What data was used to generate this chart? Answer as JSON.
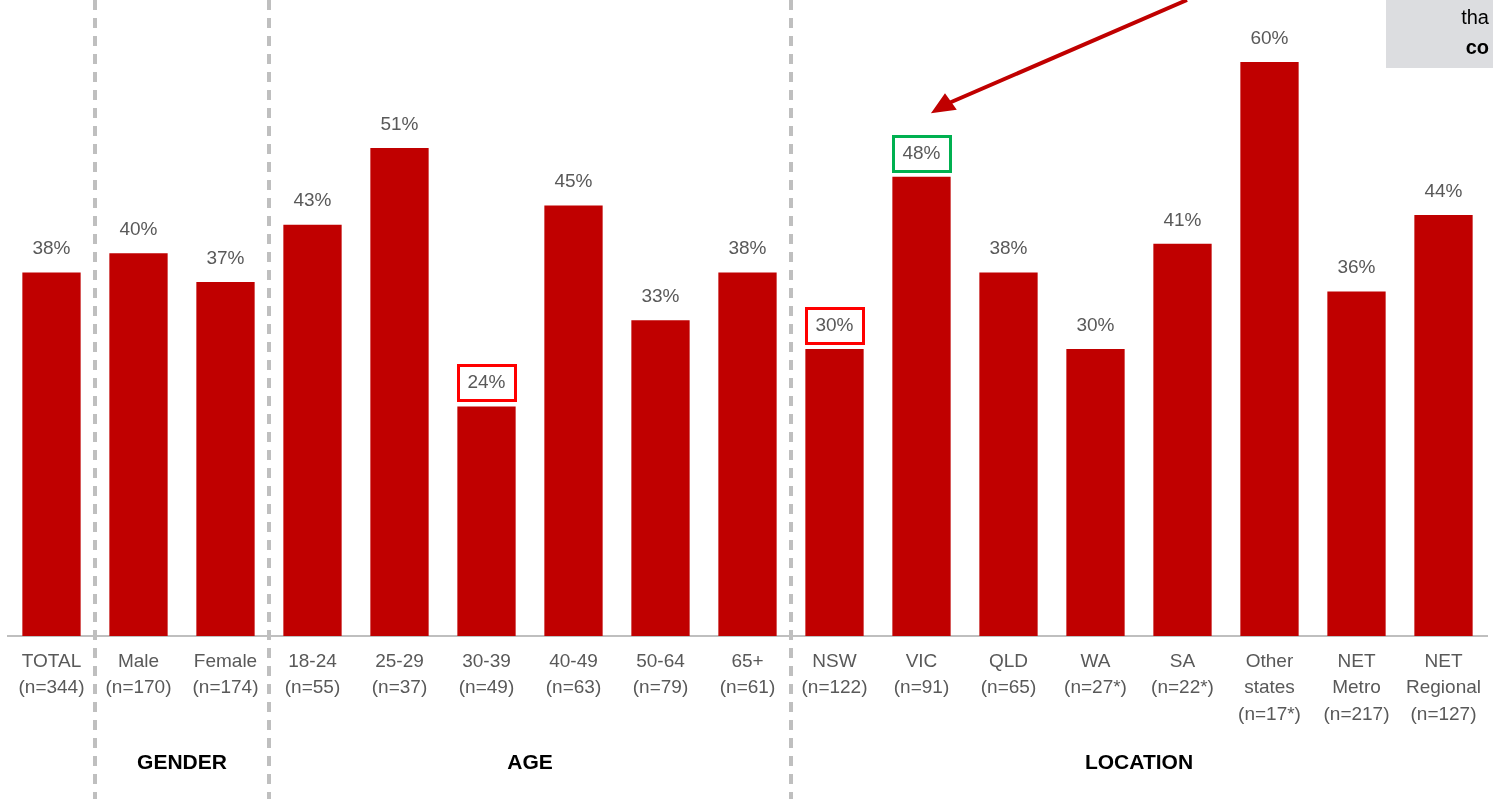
{
  "chart_data": {
    "type": "bar",
    "categories": [
      "TOTAL (n=344)",
      "Male (n=170)",
      "Female (n=174)",
      "18-24 (n=55)",
      "25-29 (n=37)",
      "30-39 (n=49)",
      "40-49 (n=63)",
      "50-64 (n=79)",
      "65+ (n=61)",
      "NSW (n=122)",
      "VIC (n=91)",
      "QLD (n=65)",
      "WA (n=27*)",
      "SA (n=22*)",
      "Other states (n=17*)",
      "NET Metro (n=217)",
      "NET Regional (n=127)"
    ],
    "values": [
      38,
      40,
      37,
      43,
      51,
      24,
      45,
      33,
      38,
      30,
      48,
      38,
      30,
      41,
      60,
      36,
      44
    ],
    "value_labels": [
      "38%",
      "40%",
      "37%",
      "43%",
      "51%",
      "24%",
      "45%",
      "33%",
      "38%",
      "30%",
      "48%",
      "38%",
      "30%",
      "41%",
      "60%",
      "36%",
      "44%"
    ],
    "color": "#c00000",
    "annotations": [
      "GENDER",
      "AGE",
      "LOCATION",
      "tha",
      "co"
    ],
    "grid": false,
    "legend": false
  }
}
